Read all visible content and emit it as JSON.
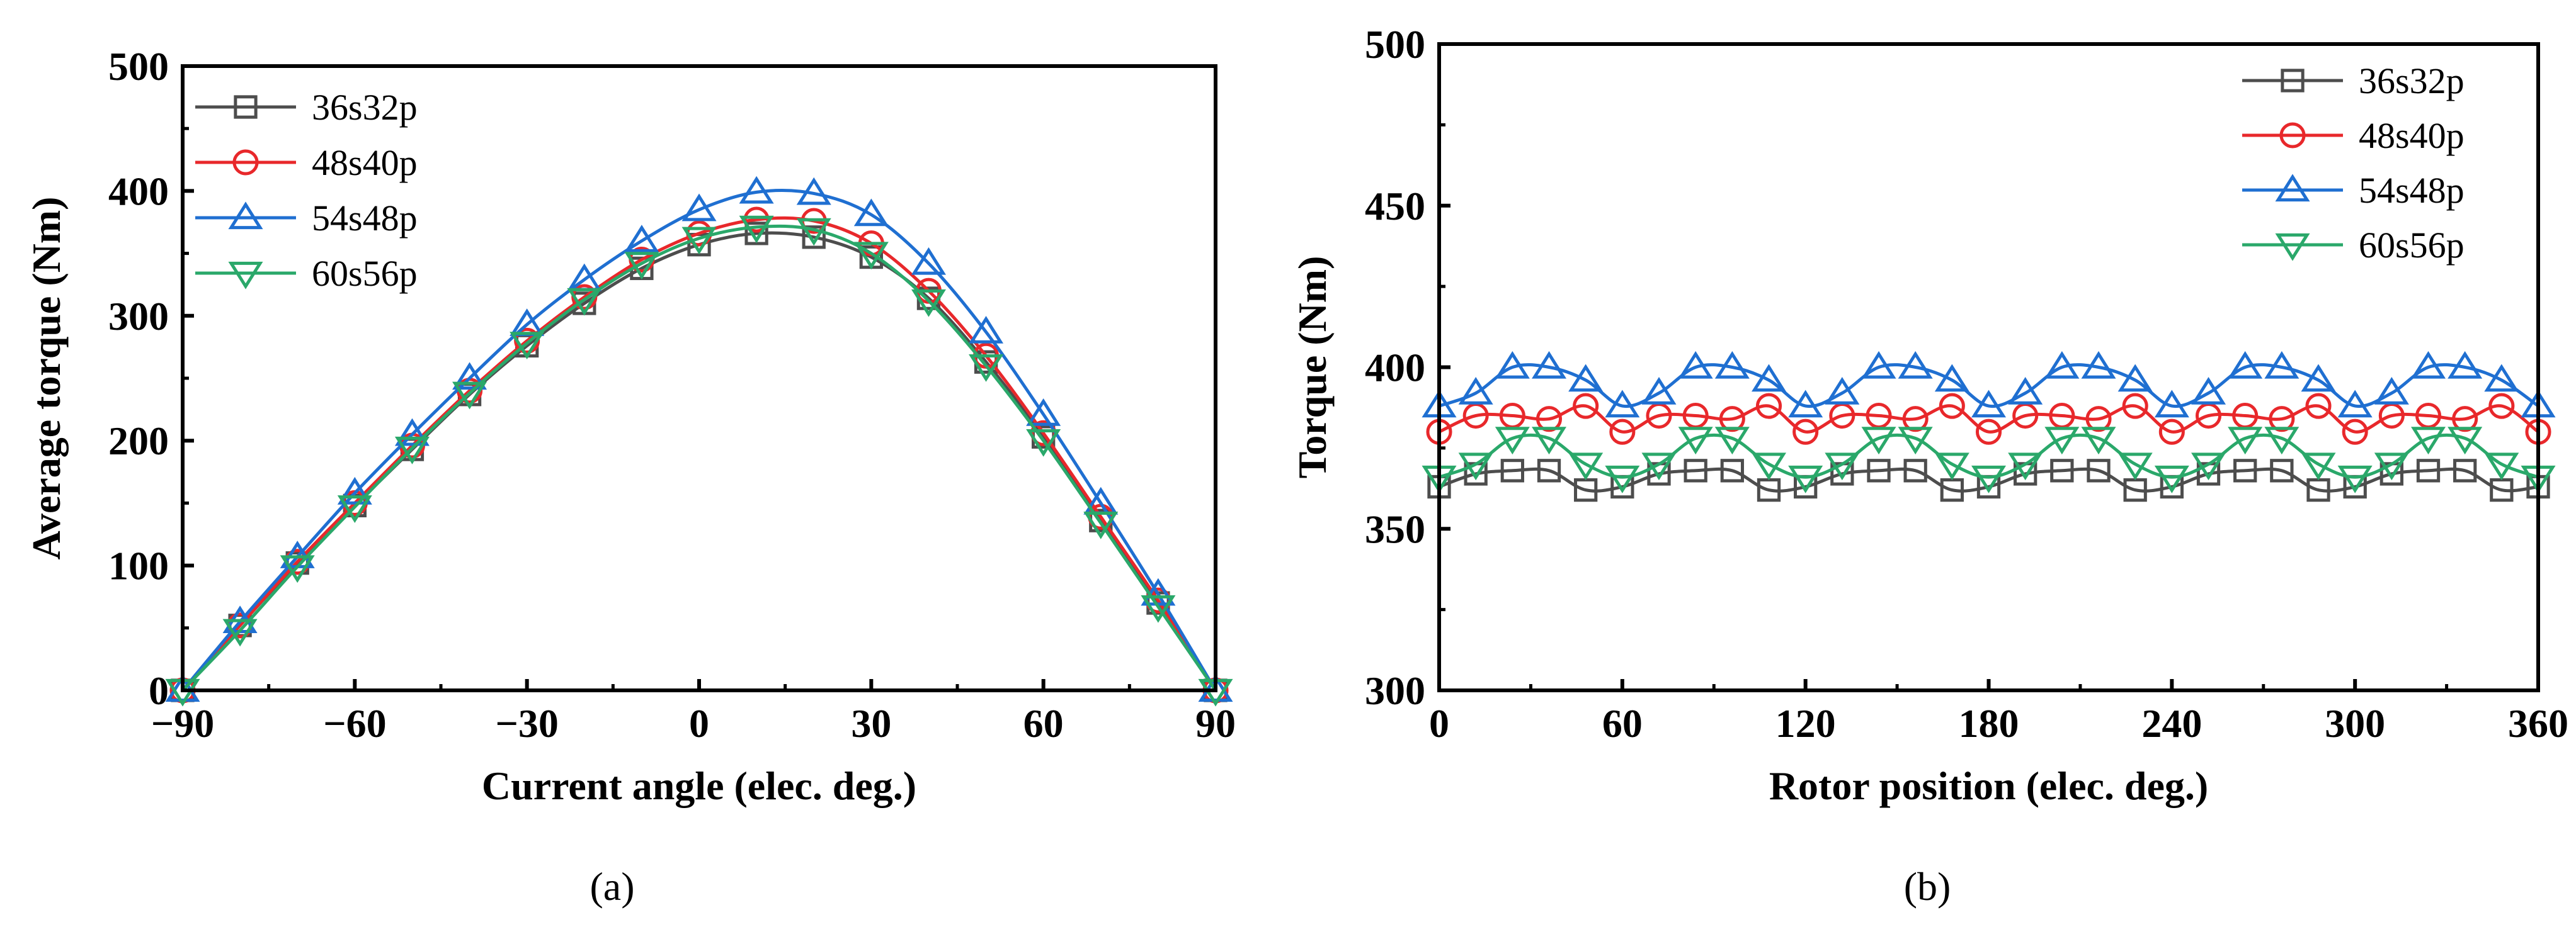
{
  "chart_data": [
    {
      "type": "line",
      "panel_label": "(a)",
      "xlabel": "Current angle (elec. deg.)",
      "ylabel": "Average torque (Nm)",
      "xlim": [
        -90,
        90
      ],
      "ylim": [
        0,
        500
      ],
      "xticks": [
        -90,
        -60,
        -30,
        0,
        30,
        60,
        90
      ],
      "yticks": [
        0,
        100,
        200,
        300,
        400,
        500
      ],
      "xtick_labels": [
        "−90",
        "−60",
        "−30",
        "0",
        "30",
        "60",
        "90"
      ],
      "ytick_labels": [
        "0",
        "100",
        "200",
        "300",
        "400",
        "500"
      ],
      "x": [
        -90,
        -80,
        -70,
        -60,
        -50,
        -40,
        -30,
        -20,
        -10,
        0,
        10,
        20,
        30,
        40,
        50,
        60,
        70,
        80,
        90
      ],
      "legend_position": "top-left",
      "series": [
        {
          "name": "36s32p",
          "color": "#4d4d4d",
          "marker": "square",
          "values": [
            0,
            52,
            102,
            148,
            193,
            237,
            276,
            310,
            338,
            357,
            366,
            363,
            347,
            314,
            263,
            203,
            136,
            70,
            0
          ]
        },
        {
          "name": "48s40p",
          "color": "#e8282b",
          "marker": "circle",
          "values": [
            0,
            52,
            103,
            150,
            196,
            240,
            280,
            315,
            345,
            366,
            377,
            376,
            358,
            320,
            268,
            206,
            139,
            72,
            0
          ]
        },
        {
          "name": "54s48p",
          "color": "#1f6fd1",
          "marker": "triangle-up",
          "values": [
            0,
            55,
            107,
            158,
            205,
            250,
            293,
            329,
            360,
            385,
            399,
            398,
            381,
            342,
            287,
            221,
            150,
            77,
            0
          ]
        },
        {
          "name": "60s56p",
          "color": "#2aa86a",
          "marker": "triangle-down",
          "values": [
            0,
            48,
            99,
            147,
            194,
            238,
            278,
            313,
            342,
            362,
            371,
            369,
            350,
            312,
            260,
            200,
            134,
            67,
            0
          ]
        }
      ]
    },
    {
      "type": "line",
      "panel_label": "(b)",
      "xlabel": "Rotor position (elec. deg.)",
      "ylabel": "Torque (Nm)",
      "xlim": [
        0,
        360
      ],
      "ylim": [
        300,
        500
      ],
      "xticks": [
        0,
        60,
        120,
        180,
        240,
        300,
        360
      ],
      "yticks": [
        300,
        350,
        400,
        450,
        500
      ],
      "xtick_labels": [
        "0",
        "60",
        "120",
        "180",
        "240",
        "300",
        "360"
      ],
      "ytick_labels": [
        "300",
        "350",
        "400",
        "450",
        "500"
      ],
      "x": [
        0,
        12,
        24,
        36,
        48,
        60,
        72,
        84,
        96,
        108,
        120,
        132,
        144,
        156,
        168,
        180,
        192,
        204,
        216,
        228,
        240,
        252,
        264,
        276,
        288,
        300,
        312,
        324,
        336,
        348,
        360
      ],
      "legend_position": "top-right",
      "series": [
        {
          "name": "36s32p",
          "color": "#4d4d4d",
          "marker": "square",
          "values": [
            363,
            367,
            368,
            368,
            362,
            363,
            367,
            368,
            368,
            362,
            363,
            367,
            368,
            368,
            362,
            363,
            367,
            368,
            368,
            362,
            363,
            367,
            368,
            368,
            362,
            363,
            367,
            368,
            368,
            362,
            363
          ]
        },
        {
          "name": "48s40p",
          "color": "#e8282b",
          "marker": "circle",
          "values": [
            380,
            385,
            385,
            384,
            388,
            380,
            385,
            385,
            384,
            388,
            380,
            385,
            385,
            384,
            388,
            380,
            385,
            385,
            384,
            388,
            380,
            385,
            385,
            384,
            388,
            380,
            385,
            385,
            384,
            388,
            380
          ]
        },
        {
          "name": "54s48p",
          "color": "#1f6fd1",
          "marker": "triangle-up",
          "values": [
            388,
            392,
            400,
            400,
            396,
            388,
            392,
            400,
            400,
            396,
            388,
            392,
            400,
            400,
            396,
            388,
            392,
            400,
            400,
            396,
            388,
            392,
            400,
            400,
            396,
            388,
            392,
            400,
            400,
            396,
            388
          ]
        },
        {
          "name": "60s56p",
          "color": "#2aa86a",
          "marker": "triangle-down",
          "values": [
            366,
            370,
            378,
            378,
            370,
            366,
            370,
            378,
            378,
            370,
            366,
            370,
            378,
            378,
            370,
            366,
            370,
            378,
            378,
            370,
            366,
            370,
            378,
            378,
            370,
            366,
            370,
            378,
            378,
            370,
            366
          ]
        }
      ]
    }
  ]
}
